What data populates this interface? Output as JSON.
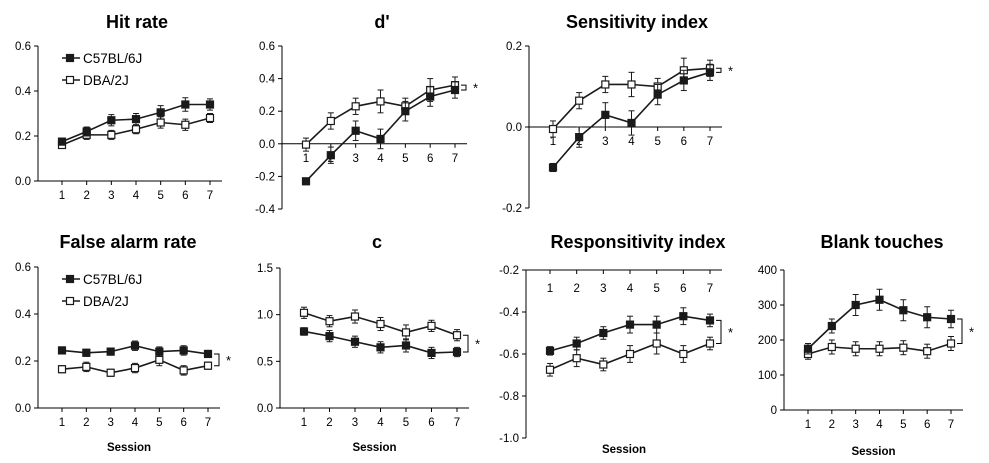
{
  "figure": {
    "colors": {
      "c57": "#1a1a1a",
      "dba_fill": "#ffffff",
      "axis": "#000000"
    }
  },
  "chart_data": [
    {
      "type": "line",
      "title": "Hit rate",
      "xlabel": "",
      "x": [
        1,
        2,
        3,
        4,
        5,
        6,
        7
      ],
      "ylim": [
        0,
        0.6
      ],
      "yticks": [
        "0.0",
        "0.2",
        "0.4",
        "0.6"
      ],
      "xaxis_at": 0,
      "xlabels_above": false,
      "significant": false,
      "legend": true,
      "series": [
        {
          "name": "C57BL/6J",
          "marker": "filled",
          "values": [
            0.175,
            0.22,
            0.27,
            0.275,
            0.305,
            0.34,
            0.34
          ],
          "err": [
            0.015,
            0.02,
            0.025,
            0.025,
            0.03,
            0.03,
            0.025
          ]
        },
        {
          "name": "DBA/2J",
          "marker": "open",
          "values": [
            0.16,
            0.205,
            0.205,
            0.23,
            0.26,
            0.25,
            0.28
          ],
          "err": [
            0.015,
            0.02,
            0.02,
            0.02,
            0.025,
            0.025,
            0.02
          ]
        }
      ]
    },
    {
      "type": "line",
      "title": "d'",
      "xlabel": "",
      "x": [
        1,
        2,
        3,
        4,
        5,
        6,
        7
      ],
      "ylim": [
        -0.4,
        0.6
      ],
      "yticks": [
        "-0.4",
        "-0.2",
        "0.0",
        "0.2",
        "0.4",
        "0.6"
      ],
      "xaxis_at": 0,
      "xlabels_above": false,
      "significant": true,
      "significance_label": "*",
      "legend": false,
      "series": [
        {
          "name": "C57BL/6J",
          "marker": "filled",
          "values": [
            -0.23,
            -0.07,
            0.08,
            0.03,
            0.2,
            0.29,
            0.33
          ],
          "err": [
            0.02,
            0.05,
            0.06,
            0.06,
            0.06,
            0.06,
            0.05
          ]
        },
        {
          "name": "DBA/2J",
          "marker": "open",
          "values": [
            -0.005,
            0.14,
            0.23,
            0.26,
            0.23,
            0.33,
            0.36
          ],
          "err": [
            0.04,
            0.05,
            0.05,
            0.07,
            0.05,
            0.07,
            0.05
          ]
        }
      ]
    },
    {
      "type": "line",
      "title": "Sensitivity index",
      "xlabel": "",
      "x": [
        1,
        2,
        3,
        4,
        5,
        6,
        7
      ],
      "ylim": [
        -0.2,
        0.2
      ],
      "yticks": [
        "-0.2",
        "0.0",
        "0.2"
      ],
      "xaxis_at": 0,
      "xlabels_above": false,
      "significant": true,
      "significance_label": "*",
      "legend": false,
      "series": [
        {
          "name": "C57BL/6J",
          "marker": "filled",
          "values": [
            -0.1,
            -0.025,
            0.03,
            0.01,
            0.08,
            0.115,
            0.135
          ],
          "err": [
            0.01,
            0.025,
            0.03,
            0.03,
            0.025,
            0.025,
            0.02
          ]
        },
        {
          "name": "DBA/2J",
          "marker": "open",
          "values": [
            -0.005,
            0.065,
            0.105,
            0.105,
            0.1,
            0.14,
            0.145
          ],
          "err": [
            0.02,
            0.02,
            0.02,
            0.03,
            0.02,
            0.03,
            0.02
          ]
        }
      ]
    },
    {
      "type": "line",
      "title": "False alarm rate",
      "xlabel": "Session",
      "x": [
        1,
        2,
        3,
        4,
        5,
        6,
        7
      ],
      "ylim": [
        0,
        0.6
      ],
      "yticks": [
        "0.0",
        "0.2",
        "0.4",
        "0.6"
      ],
      "xaxis_at": 0,
      "xlabels_above": false,
      "significant": true,
      "significance_label": "*",
      "legend": true,
      "series": [
        {
          "name": "C57BL/6J",
          "marker": "filled",
          "values": [
            0.245,
            0.235,
            0.24,
            0.265,
            0.24,
            0.245,
            0.23
          ],
          "err": [
            0.015,
            0.015,
            0.015,
            0.02,
            0.02,
            0.02,
            0.015
          ]
        },
        {
          "name": "DBA/2J",
          "marker": "open",
          "values": [
            0.165,
            0.175,
            0.15,
            0.17,
            0.205,
            0.16,
            0.18
          ],
          "err": [
            0.015,
            0.02,
            0.015,
            0.02,
            0.025,
            0.02,
            0.015
          ]
        }
      ]
    },
    {
      "type": "line",
      "title": "c",
      "xlabel": "Session",
      "x": [
        1,
        2,
        3,
        4,
        5,
        6,
        7
      ],
      "ylim": [
        0,
        1.5
      ],
      "yticks": [
        "0.0",
        "0.5",
        "1.0",
        "1.5"
      ],
      "xaxis_at": 0,
      "xlabels_above": false,
      "significant": true,
      "significance_label": "*",
      "legend": false,
      "series": [
        {
          "name": "C57BL/6J",
          "marker": "filled",
          "values": [
            0.82,
            0.77,
            0.71,
            0.65,
            0.67,
            0.59,
            0.6
          ],
          "err": [
            0.04,
            0.06,
            0.06,
            0.06,
            0.07,
            0.06,
            0.05
          ]
        },
        {
          "name": "DBA/2J",
          "marker": "open",
          "values": [
            1.02,
            0.93,
            0.98,
            0.9,
            0.81,
            0.88,
            0.78
          ],
          "err": [
            0.06,
            0.06,
            0.07,
            0.07,
            0.08,
            0.06,
            0.06
          ]
        }
      ]
    },
    {
      "type": "line",
      "title": "Responsitivity index",
      "xlabel": "Session",
      "x": [
        1,
        2,
        3,
        4,
        5,
        6,
        7
      ],
      "ylim": [
        -1.0,
        -0.2
      ],
      "yticks": [
        "-1.0",
        "-0.8",
        "-0.6",
        "-0.4",
        "-0.2"
      ],
      "xaxis_at": -0.2,
      "xlabels_above": true,
      "significant": true,
      "significance_label": "*",
      "legend": false,
      "series": [
        {
          "name": "C57BL/6J",
          "marker": "filled",
          "values": [
            -0.585,
            -0.55,
            -0.5,
            -0.46,
            -0.46,
            -0.42,
            -0.44
          ],
          "err": [
            0.02,
            0.03,
            0.03,
            0.04,
            0.04,
            0.04,
            0.03
          ]
        },
        {
          "name": "DBA/2J",
          "marker": "open",
          "values": [
            -0.675,
            -0.62,
            -0.65,
            -0.6,
            -0.55,
            -0.6,
            -0.55
          ],
          "err": [
            0.03,
            0.04,
            0.03,
            0.04,
            0.05,
            0.04,
            0.03
          ]
        }
      ]
    },
    {
      "type": "line",
      "title": "Blank touches",
      "xlabel": "Session",
      "x": [
        1,
        2,
        3,
        4,
        5,
        6,
        7
      ],
      "ylim": [
        0,
        400
      ],
      "yticks": [
        "0",
        "100",
        "200",
        "300",
        "400"
      ],
      "xaxis_at": 0,
      "xlabels_above": false,
      "significant": true,
      "significance_label": "*",
      "legend": false,
      "series": [
        {
          "name": "C57BL/6J",
          "marker": "filled",
          "values": [
            175,
            240,
            300,
            315,
            285,
            265,
            260
          ],
          "err": [
            15,
            20,
            30,
            30,
            30,
            30,
            25
          ]
        },
        {
          "name": "DBA/2J",
          "marker": "open",
          "values": [
            160,
            180,
            175,
            175,
            178,
            168,
            190
          ],
          "err": [
            15,
            20,
            20,
            20,
            20,
            20,
            20
          ]
        }
      ]
    }
  ]
}
